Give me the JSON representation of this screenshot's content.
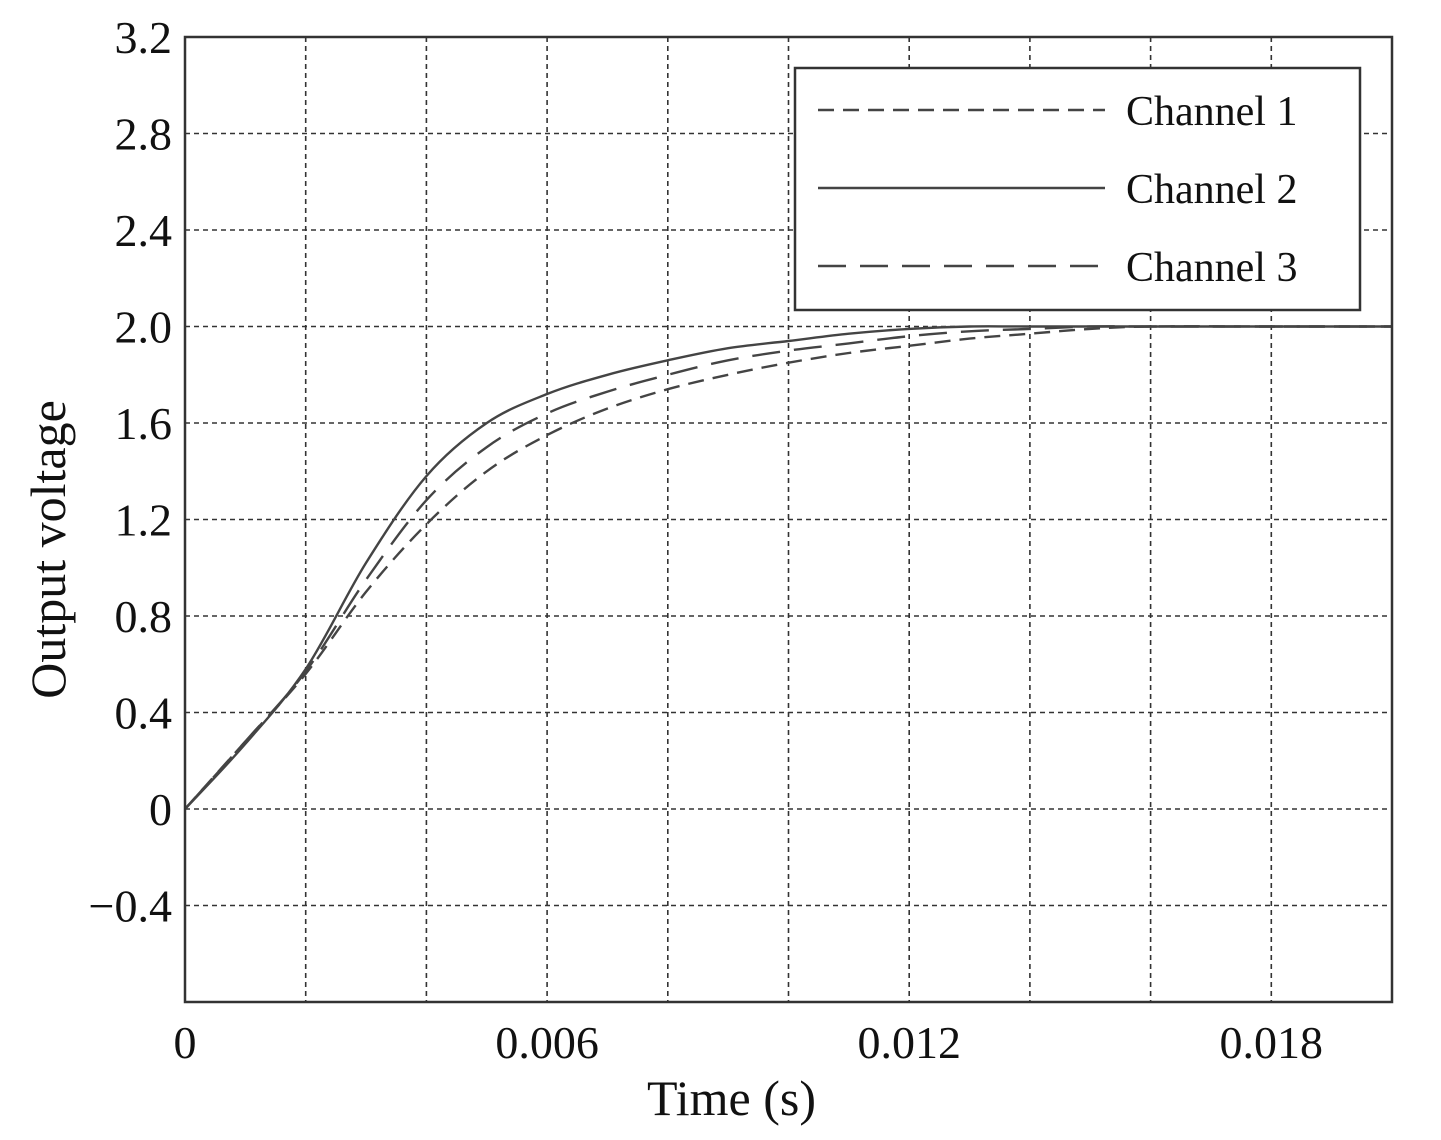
{
  "chart_data": {
    "type": "line",
    "title": "",
    "xlabel": "Time (s)",
    "ylabel": "Output voltage",
    "xlim": [
      0,
      0.02
    ],
    "ylim": [
      -0.8,
      3.2
    ],
    "xticks": [
      0,
      0.006,
      0.012,
      0.018
    ],
    "xtick_labels": [
      "0",
      "0.006",
      "0.012",
      "0.018"
    ],
    "xgrid": [
      0,
      0.002,
      0.004,
      0.006,
      0.008,
      0.01,
      0.012,
      0.014,
      0.016,
      0.018,
      0.02
    ],
    "yticks": [
      -0.4,
      0,
      0.4,
      0.8,
      1.2,
      1.6,
      2.0,
      2.4,
      2.8,
      3.2
    ],
    "ytick_labels": [
      "−0.4",
      "0",
      "0.4",
      "0.8",
      "1.2",
      "1.6",
      "2.0",
      "2.4",
      "2.8",
      "3.2"
    ],
    "ygrid": [
      -0.4,
      0,
      0.4,
      0.8,
      1.2,
      1.6,
      2.0,
      2.4,
      2.8,
      3.2
    ],
    "grid": true,
    "legend_position": "top-right",
    "series": [
      {
        "name": "Channel 1",
        "style": "dashed",
        "x": [
          0,
          0.001,
          0.002,
          0.003,
          0.004,
          0.005,
          0.006,
          0.007,
          0.008,
          0.009,
          0.01,
          0.011,
          0.012,
          0.013,
          0.014,
          0.015,
          0.016,
          0.018,
          0.02
        ],
        "y": [
          0,
          0.28,
          0.56,
          0.9,
          1.18,
          1.4,
          1.55,
          1.66,
          1.74,
          1.8,
          1.85,
          1.89,
          1.92,
          1.95,
          1.97,
          1.99,
          2.0,
          2.0,
          2.0
        ]
      },
      {
        "name": "Channel 2",
        "style": "solid",
        "x": [
          0,
          0.001,
          0.002,
          0.003,
          0.004,
          0.005,
          0.006,
          0.007,
          0.008,
          0.009,
          0.01,
          0.011,
          0.012,
          0.013,
          0.014,
          0.016,
          0.018,
          0.02
        ],
        "y": [
          0,
          0.27,
          0.58,
          1.02,
          1.38,
          1.6,
          1.72,
          1.8,
          1.86,
          1.91,
          1.94,
          1.97,
          1.99,
          2.0,
          2.0,
          2.0,
          2.0,
          2.0
        ]
      },
      {
        "name": "Channel 3",
        "style": "long-dashed",
        "x": [
          0,
          0.001,
          0.002,
          0.003,
          0.004,
          0.005,
          0.006,
          0.007,
          0.008,
          0.009,
          0.01,
          0.011,
          0.012,
          0.013,
          0.014,
          0.015,
          0.016,
          0.018,
          0.02
        ],
        "y": [
          0,
          0.28,
          0.57,
          0.95,
          1.28,
          1.5,
          1.64,
          1.73,
          1.8,
          1.86,
          1.9,
          1.93,
          1.96,
          1.98,
          1.99,
          2.0,
          2.0,
          2.0,
          2.0
        ]
      }
    ]
  }
}
